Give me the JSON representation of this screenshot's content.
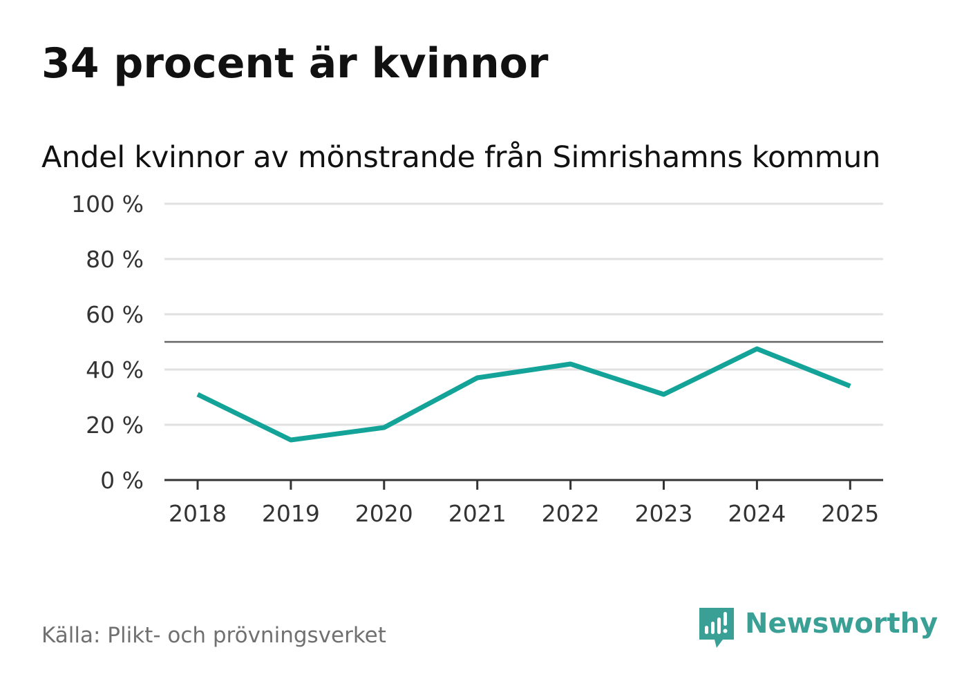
{
  "header": {
    "title": "34 procent är kvinnor",
    "subtitle": "Andel kvinnor av mönstrande från Simrishamns kommun"
  },
  "chart_data": {
    "type": "line",
    "title": "34 procent är kvinnor",
    "subtitle": "Andel kvinnor av mönstrande från Simrishamns kommun",
    "xlabel": "",
    "ylabel": "",
    "categories": [
      "2018",
      "2019",
      "2020",
      "2021",
      "2022",
      "2023",
      "2024",
      "2025"
    ],
    "series": [
      {
        "values": [
          31,
          14.5,
          19,
          37,
          42,
          31,
          47.5,
          34
        ],
        "color": "#13a398"
      }
    ],
    "ylim": [
      0,
      100
    ],
    "yticks": [
      0,
      20,
      40,
      60,
      80,
      100
    ],
    "ytick_labels": [
      "0 %",
      "20 %",
      "40 %",
      "60 %",
      "80 %",
      "100 %"
    ],
    "reference_line": 50,
    "grid": true,
    "legend": "none",
    "colors": {
      "line": "#13a398",
      "grid": "#e0e0e0",
      "reference": "#666666",
      "axis": "#333333"
    }
  },
  "footer": {
    "source": "Källa: Plikt- och prövningsverket",
    "brand": "Newsworthy",
    "brand_icon": "newsworthy-logo-icon",
    "brand_color": "#3aa095"
  }
}
